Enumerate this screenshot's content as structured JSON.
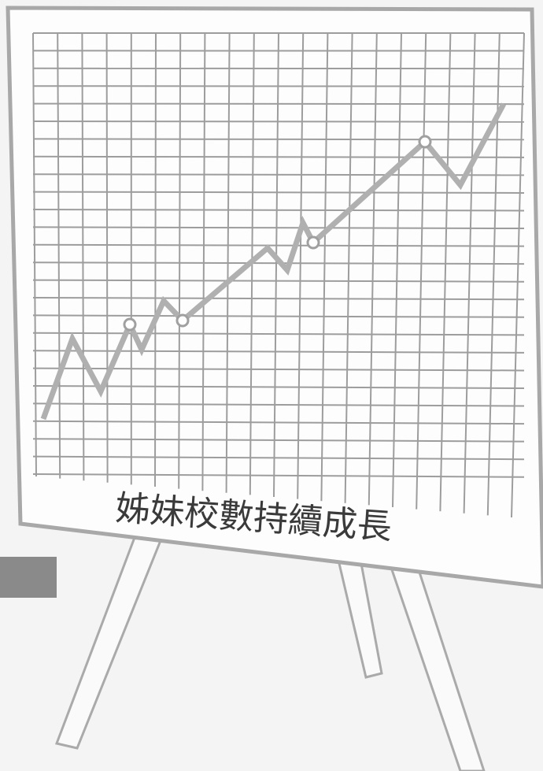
{
  "board": {
    "caption": "姊妹校數持續成長"
  }
}
